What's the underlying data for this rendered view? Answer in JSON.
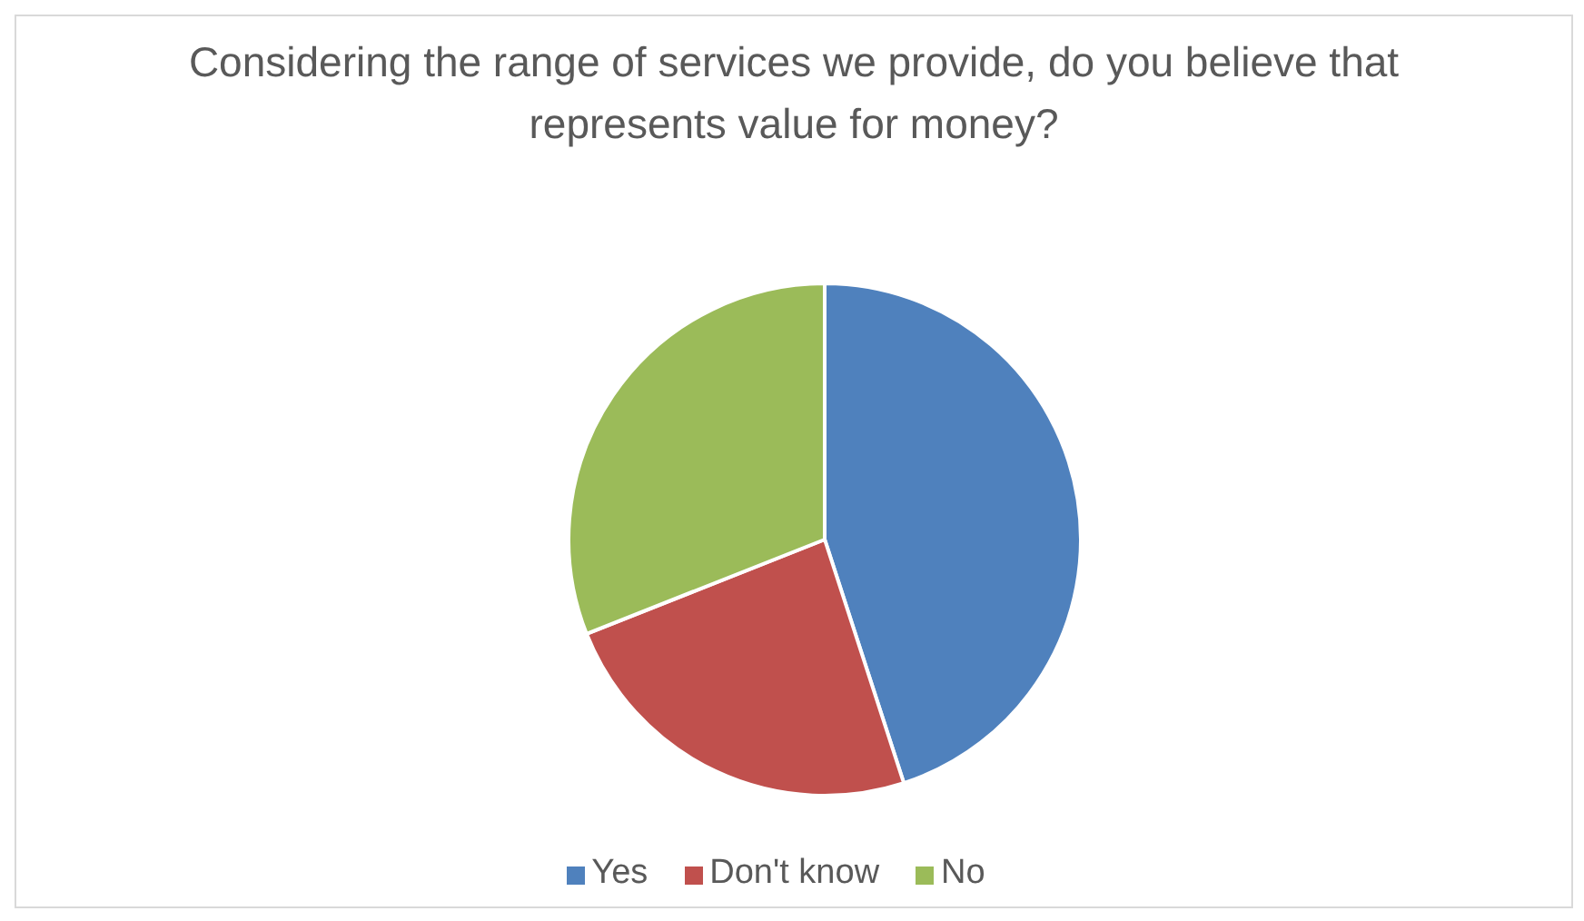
{
  "chart_data": {
    "type": "pie",
    "title": "Considering the range of services we provide, do you believe that represents value for money?",
    "categories": [
      "Yes",
      "Don't know",
      "No"
    ],
    "values": [
      45,
      24,
      31
    ],
    "colors": [
      "#4f81bd",
      "#c0504d",
      "#9bbb59"
    ],
    "legend": "bottom"
  }
}
